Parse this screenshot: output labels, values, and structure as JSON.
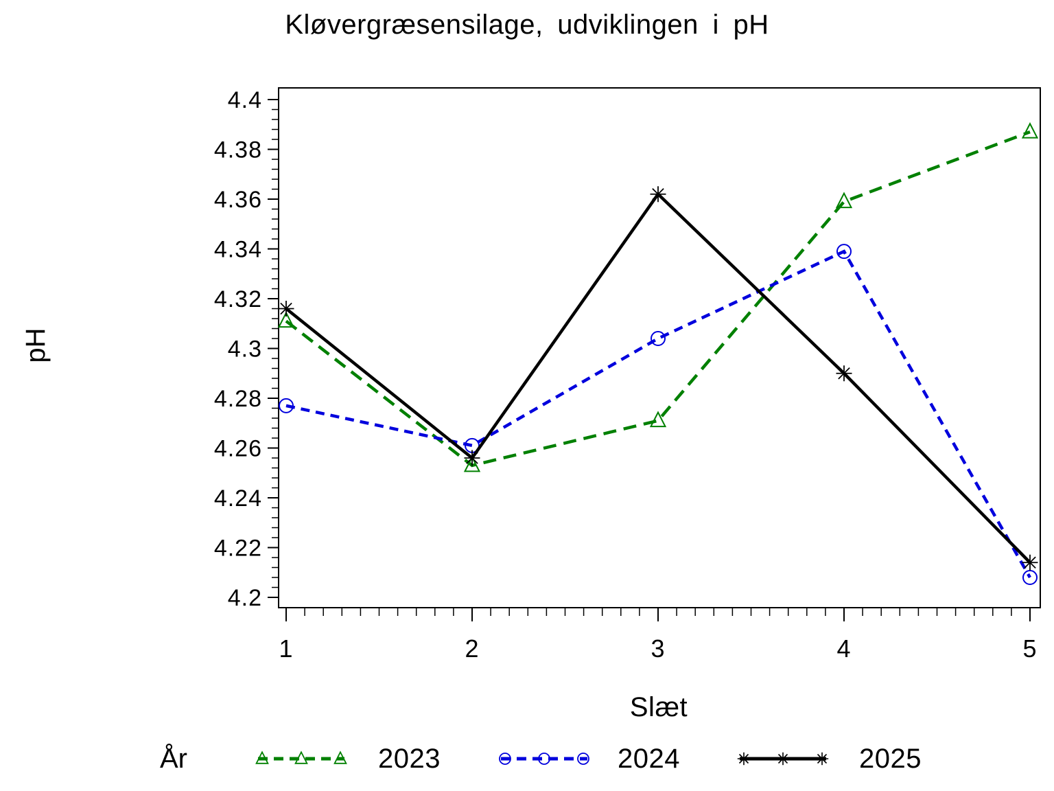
{
  "chart_data": {
    "type": "line",
    "title": "Kløvergræsensilage, udviklingen i pH",
    "xlabel": "Slæt",
    "ylabel": "pH",
    "legend_title": "År",
    "legend_position": "bottom",
    "grid": false,
    "x": [
      1,
      2,
      3,
      4,
      5
    ],
    "x_tick_labels": [
      "1",
      "2",
      "3",
      "4",
      "5"
    ],
    "x_minor_step": 0.1,
    "ylim": [
      4.2,
      4.4
    ],
    "y_major_step": 0.02,
    "y_minor_step": 0.004,
    "y_tick_labels": [
      "4.2",
      "4.22",
      "4.24",
      "4.26",
      "4.28",
      "4.3",
      "4.32",
      "4.34",
      "4.36",
      "4.38",
      "4.4"
    ],
    "axis_color": "#000000",
    "text_color": "#000000",
    "background_color": "#ffffff",
    "series": [
      {
        "name": "2023",
        "color": "#008000",
        "line_style": "dashed",
        "dash": "19 11",
        "marker": "triangle",
        "values": [
          4.311,
          4.253,
          4.271,
          4.359,
          4.387
        ]
      },
      {
        "name": "2024",
        "color": "#0000DD",
        "line_style": "dashed",
        "dash": "13 9",
        "marker": "circle",
        "values": [
          4.277,
          4.261,
          4.304,
          4.339,
          4.208
        ]
      },
      {
        "name": "2025",
        "color": "#000000",
        "line_style": "solid",
        "dash": "",
        "marker": "asterisk",
        "values": [
          4.316,
          4.256,
          4.362,
          4.29,
          4.214
        ]
      }
    ]
  }
}
